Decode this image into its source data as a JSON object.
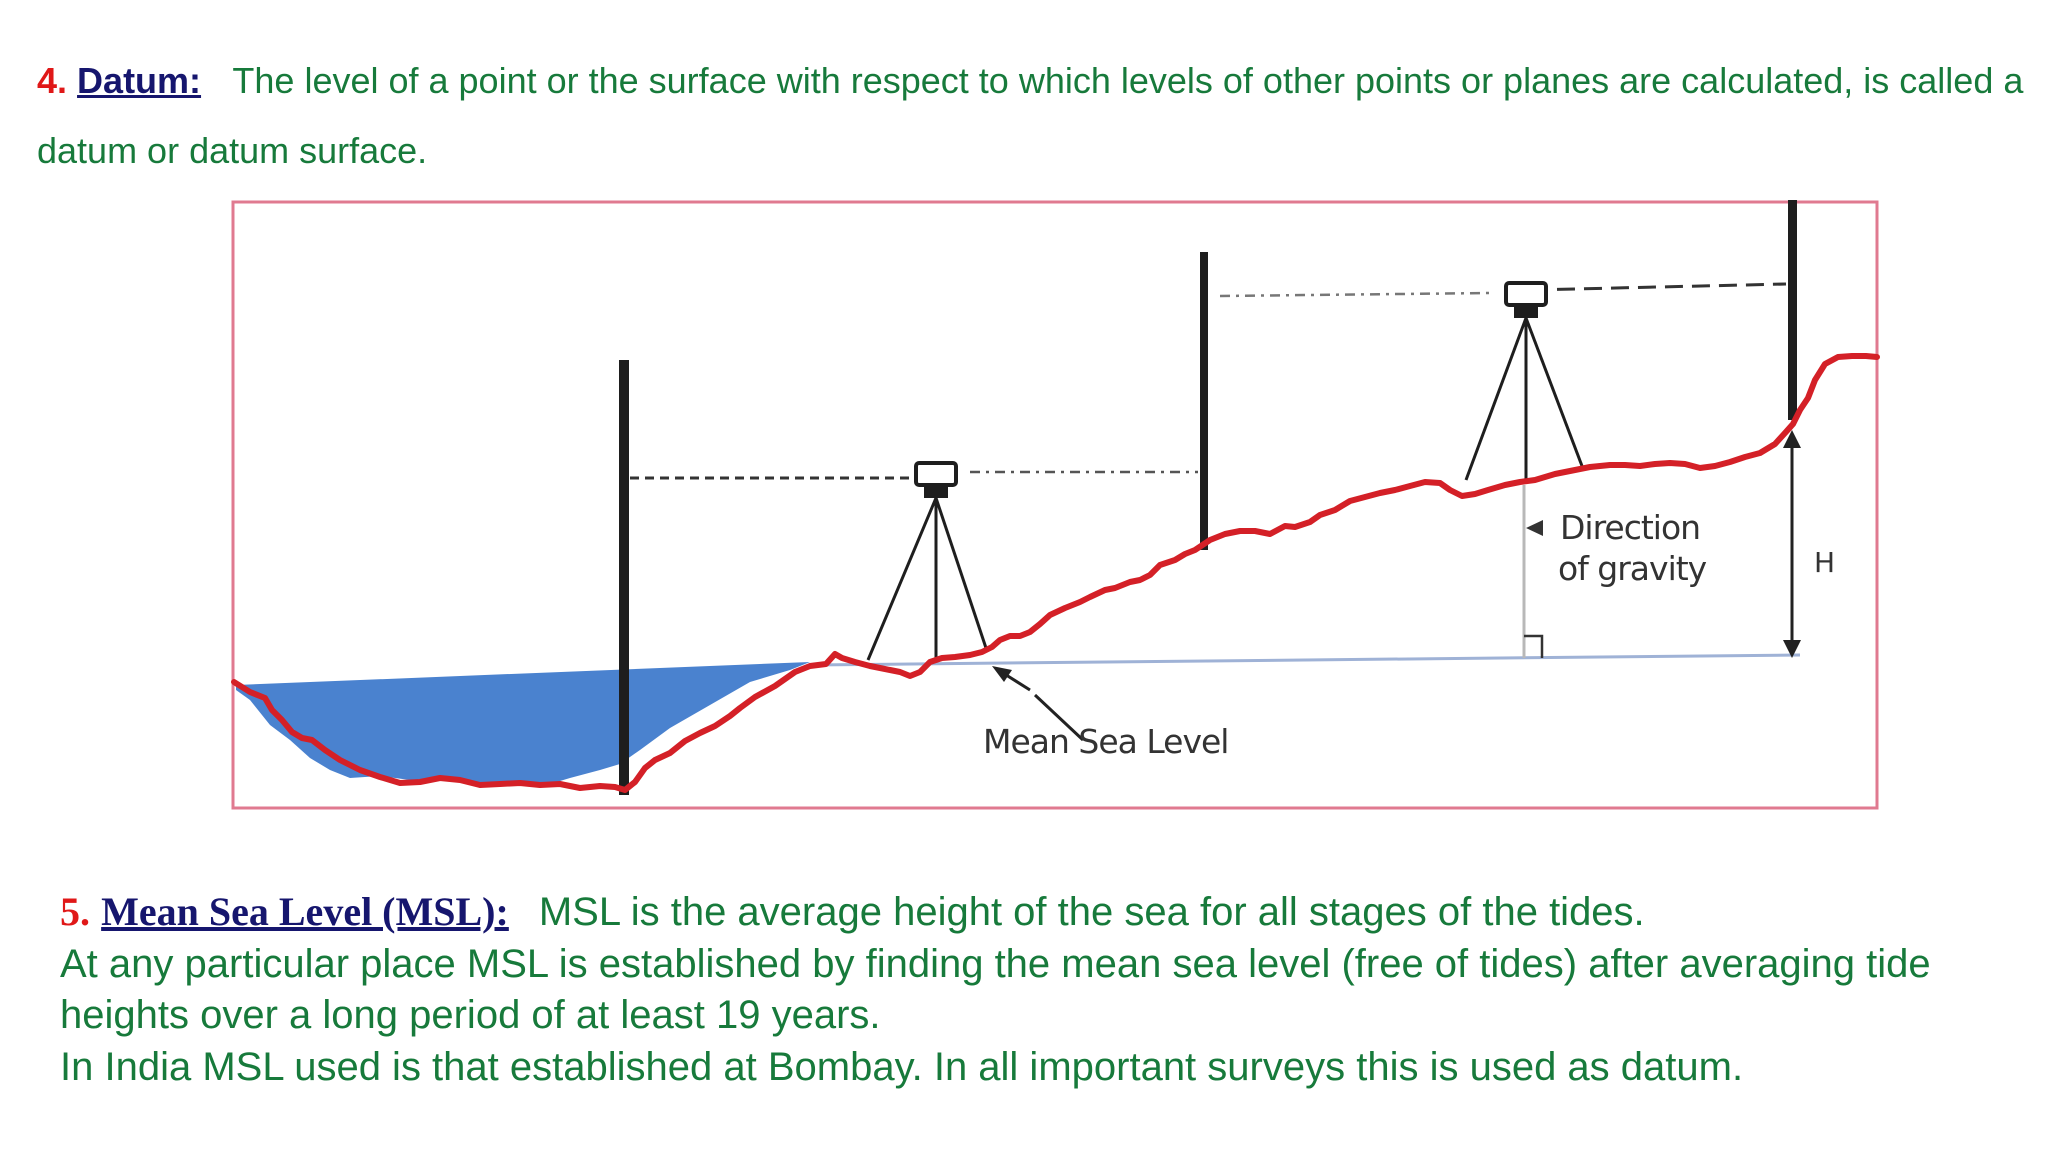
{
  "datum_section": {
    "number": "4.",
    "term": "Datum:",
    "definition": "The level of a point or the surface with respect to which levels of other points or planes are calculated, is called a datum or datum surface."
  },
  "diagram": {
    "labels": {
      "mean_sea_level": "Mean Sea Level",
      "direction_line1": "Direction",
      "direction_line2": "of gravity",
      "height": "H"
    },
    "colors": {
      "frame": "#e07a90",
      "ground": "#d42027",
      "water": "#4a82cf",
      "staff": "#1e1e1e"
    }
  },
  "msl_section": {
    "number": "5.",
    "term": "Mean Sea Level (MSL):",
    "line1": "MSL is the average height of the sea for all stages of the tides.",
    "line2": "At any particular place MSL is established by finding the mean sea level (free of tides) after averaging tide",
    "line3": "heights over a long period of at least 19 years.",
    "line4": "In India MSL used is that established at Bombay. In all important surveys this is used as datum."
  }
}
